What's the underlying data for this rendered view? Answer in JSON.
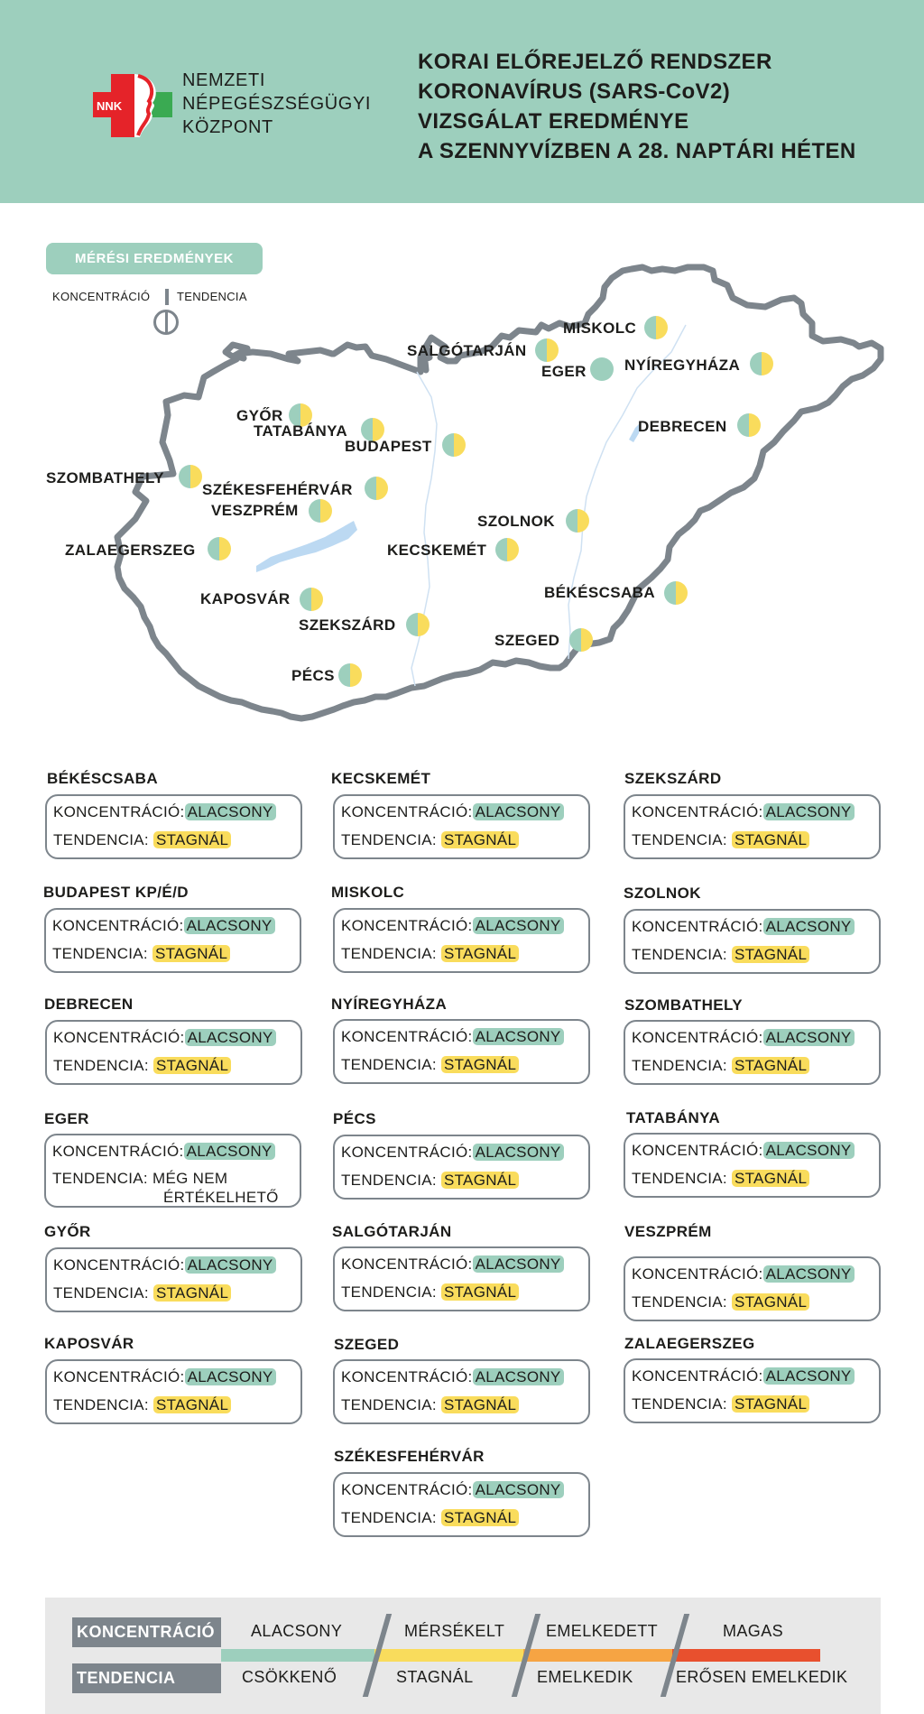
{
  "header": {
    "org_name": [
      "NEMZETI",
      "NÉPEGÉSZSÉGÜGYI",
      "KÖZPONT"
    ],
    "logo_text": "NNK",
    "title": [
      "KORAI ELŐREJELZŐ RENDSZER",
      "KORONAVÍRUS (SARS-CoV2)",
      "VIZSGÁLAT EREDMÉNYE",
      "A SZENNYVÍZBEN A 28. NAPTÁRI HÉTEN"
    ]
  },
  "map_section": {
    "label": "MÉRÉSI EREDMÉNYEK",
    "legend_concentration": "KONCENTRÁCIÓ",
    "legend_trend": "TENDENCIA"
  },
  "map_cities": [
    {
      "name": "MISKOLC"
    },
    {
      "name": "SALGÓTARJÁN"
    },
    {
      "name": "EGER"
    },
    {
      "name": "NYÍREGYHÁZA"
    },
    {
      "name": "GYŐR"
    },
    {
      "name": "TATABÁNYA"
    },
    {
      "name": "BUDAPEST"
    },
    {
      "name": "DEBRECEN"
    },
    {
      "name": "SZOMBATHELY"
    },
    {
      "name": "SZÉKESFEHÉRVÁR"
    },
    {
      "name": "VESZPRÉM"
    },
    {
      "name": "SZOLNOK"
    },
    {
      "name": "ZALAEGERSZEG"
    },
    {
      "name": "KECSKEMÉT"
    },
    {
      "name": "BÉKÉSCSABA"
    },
    {
      "name": "KAPOSVÁR"
    },
    {
      "name": "SZEKSZÁRD"
    },
    {
      "name": "SZEGED"
    },
    {
      "name": "PÉCS"
    }
  ],
  "cards_labels": {
    "concentration": "KONCENTRÁCIÓ:",
    "trend": "TENDENCIA:"
  },
  "cards": [
    {
      "city": "BÉKÉSCSABA",
      "concentration": "ALACSONY",
      "trend": "STAGNÁL"
    },
    {
      "city": "KECSKEMÉT",
      "concentration": "ALACSONY",
      "trend": "STAGNÁL"
    },
    {
      "city": "SZEKSZÁRD",
      "concentration": "ALACSONY",
      "trend": "STAGNÁL"
    },
    {
      "city": "BUDAPEST KP/É/D",
      "concentration": "ALACSONY",
      "trend": "STAGNÁL"
    },
    {
      "city": "MISKOLC",
      "concentration": "ALACSONY",
      "trend": "STAGNÁL"
    },
    {
      "city": "SZOLNOK",
      "concentration": "ALACSONY",
      "trend": "STAGNÁL"
    },
    {
      "city": "DEBRECEN",
      "concentration": "ALACSONY",
      "trend": "STAGNÁL"
    },
    {
      "city": "NYÍREGYHÁZA",
      "concentration": "ALACSONY",
      "trend": "STAGNÁL"
    },
    {
      "city": "SZOMBATHELY",
      "concentration": "ALACSONY",
      "trend": "STAGNÁL"
    },
    {
      "city": "EGER",
      "concentration": "ALACSONY",
      "trend_line1": "MÉG NEM",
      "trend_line2": "ÉRTÉKELHETŐ"
    },
    {
      "city": "PÉCS",
      "concentration": "ALACSONY",
      "trend": "STAGNÁL"
    },
    {
      "city": "TATABÁNYA",
      "concentration": "ALACSONY",
      "trend": "STAGNÁL"
    },
    {
      "city": "GYŐR",
      "concentration": "ALACSONY",
      "trend": "STAGNÁL"
    },
    {
      "city": "SALGÓTARJÁN",
      "concentration": "ALACSONY",
      "trend": "STAGNÁL"
    },
    {
      "city": "VESZPRÉM",
      "concentration": "ALACSONY",
      "trend": "STAGNÁL"
    },
    {
      "city": "KAPOSVÁR",
      "concentration": "ALACSONY",
      "trend": "STAGNÁL"
    },
    {
      "city": "SZEGED",
      "concentration": "ALACSONY",
      "trend": "STAGNÁL"
    },
    {
      "city": "ZALAEGERSZEG",
      "concentration": "ALACSONY",
      "trend": "STAGNÁL"
    },
    {
      "city": "SZÉKESFEHÉRVÁR",
      "concentration": "ALACSONY",
      "trend": "STAGNÁL"
    }
  ],
  "legend": {
    "concentration_label": "KONCENTRÁCIÓ",
    "trend_label": "TENDENCIA",
    "concentration_levels": [
      "ALACSONY",
      "MÉRSÉKELT",
      "EMELKEDETT",
      "MAGAS"
    ],
    "trend_levels": [
      "CSÖKKENŐ",
      "STAGNÁL",
      "EMELKEDIK",
      "ERŐSEN EMELKEDIK"
    ],
    "colors": [
      "#9dcfbd",
      "#f9dc5c",
      "#f6a443",
      "#e8502e"
    ]
  }
}
